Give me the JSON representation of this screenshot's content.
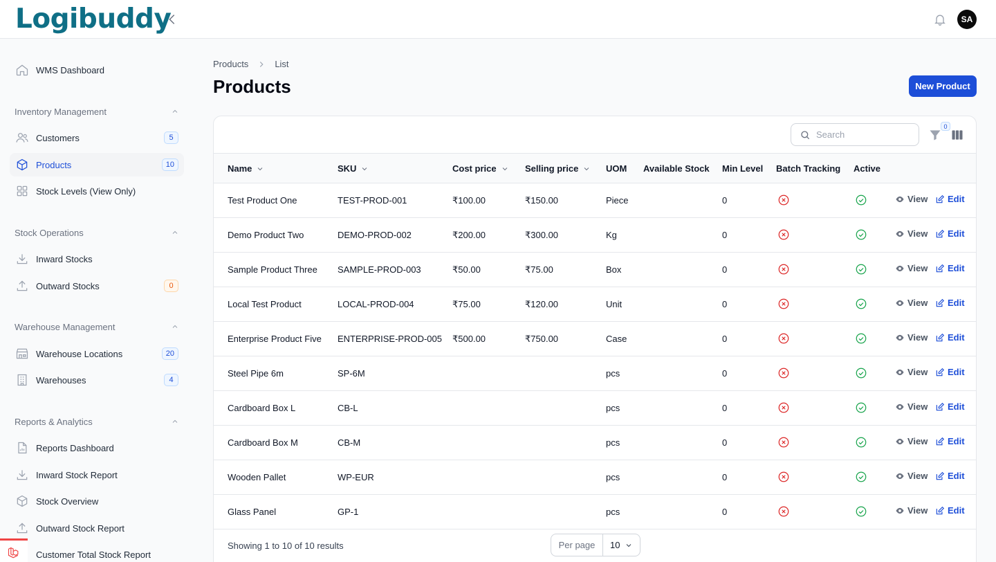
{
  "app": {
    "logo": "Logibuddy",
    "avatar_initials": "SA"
  },
  "sidebar": {
    "dashboard": {
      "label": "WMS Dashboard"
    },
    "groups": {
      "inventory": "Inventory Management",
      "stock_ops": "Stock Operations",
      "warehouse": "Warehouse Management",
      "reports": "Reports & Analytics"
    },
    "items": {
      "customers": {
        "label": "Customers",
        "badge": "5"
      },
      "products": {
        "label": "Products",
        "badge": "10"
      },
      "stock_levels": {
        "label": "Stock Levels (View Only)"
      },
      "inward_stocks": {
        "label": "Inward Stocks"
      },
      "outward_stocks": {
        "label": "Outward Stocks",
        "badge": "0"
      },
      "warehouse_locations": {
        "label": "Warehouse Locations",
        "badge": "20"
      },
      "warehouses": {
        "label": "Warehouses",
        "badge": "4"
      },
      "reports_dashboard": {
        "label": "Reports Dashboard"
      },
      "inward_stock_report": {
        "label": "Inward Stock Report"
      },
      "stock_overview": {
        "label": "Stock Overview"
      },
      "outward_stock_report": {
        "label": "Outward Stock Report"
      },
      "customer_total_stock_report": {
        "label": "Customer Total Stock Report"
      }
    }
  },
  "breadcrumb": {
    "parent": "Products",
    "current": "List"
  },
  "page": {
    "title": "Products",
    "new_button": "New Product"
  },
  "toolbar": {
    "search_placeholder": "Search",
    "filter_count": "0"
  },
  "table": {
    "columns": {
      "name": "Name",
      "sku": "SKU",
      "cost_price": "Cost price",
      "selling_price": "Selling price",
      "uom": "UOM",
      "available_stock": "Available Stock",
      "min_level": "Min Level",
      "batch_tracking": "Batch Tracking",
      "active": "Active"
    },
    "actions": {
      "view": "View",
      "edit": "Edit"
    },
    "rows": [
      {
        "name": "Test Product One",
        "sku": "TEST-PROD-001",
        "cost": "₹100.00",
        "selling": "₹150.00",
        "uom": "Piece",
        "available": "",
        "min_level": "0",
        "batch_tracking": false,
        "active": true
      },
      {
        "name": "Demo Product Two",
        "sku": "DEMO-PROD-002",
        "cost": "₹200.00",
        "selling": "₹300.00",
        "uom": "Kg",
        "available": "",
        "min_level": "0",
        "batch_tracking": false,
        "active": true
      },
      {
        "name": "Sample Product Three",
        "sku": "SAMPLE-PROD-003",
        "cost": "₹50.00",
        "selling": "₹75.00",
        "uom": "Box",
        "available": "",
        "min_level": "0",
        "batch_tracking": false,
        "active": true
      },
      {
        "name": "Local Test Product",
        "sku": "LOCAL-PROD-004",
        "cost": "₹75.00",
        "selling": "₹120.00",
        "uom": "Unit",
        "available": "",
        "min_level": "0",
        "batch_tracking": false,
        "active": true
      },
      {
        "name": "Enterprise Product Five",
        "sku": "ENTERPRISE-PROD-005",
        "cost": "₹500.00",
        "selling": "₹750.00",
        "uom": "Case",
        "available": "",
        "min_level": "0",
        "batch_tracking": false,
        "active": true
      },
      {
        "name": "Steel Pipe 6m",
        "sku": "SP-6M",
        "cost": "",
        "selling": "",
        "uom": "pcs",
        "available": "",
        "min_level": "0",
        "batch_tracking": false,
        "active": true
      },
      {
        "name": "Cardboard Box L",
        "sku": "CB-L",
        "cost": "",
        "selling": "",
        "uom": "pcs",
        "available": "",
        "min_level": "0",
        "batch_tracking": false,
        "active": true
      },
      {
        "name": "Cardboard Box M",
        "sku": "CB-M",
        "cost": "",
        "selling": "",
        "uom": "pcs",
        "available": "",
        "min_level": "0",
        "batch_tracking": false,
        "active": true
      },
      {
        "name": "Wooden Pallet",
        "sku": "WP-EUR",
        "cost": "",
        "selling": "",
        "uom": "pcs",
        "available": "",
        "min_level": "0",
        "batch_tracking": false,
        "active": true
      },
      {
        "name": "Glass Panel",
        "sku": "GP-1",
        "cost": "",
        "selling": "",
        "uom": "pcs",
        "available": "",
        "min_level": "0",
        "batch_tracking": false,
        "active": true
      }
    ]
  },
  "pagination": {
    "showing": "Showing 1 to 10 of 10 results",
    "per_page_label": "Per page",
    "per_page_value": "10"
  },
  "colors": {
    "primary": "#1d4ed8",
    "brand_teal": "#0f6f86",
    "success": "#16a34a",
    "danger": "#dc2626",
    "warning": "#ea580c"
  }
}
